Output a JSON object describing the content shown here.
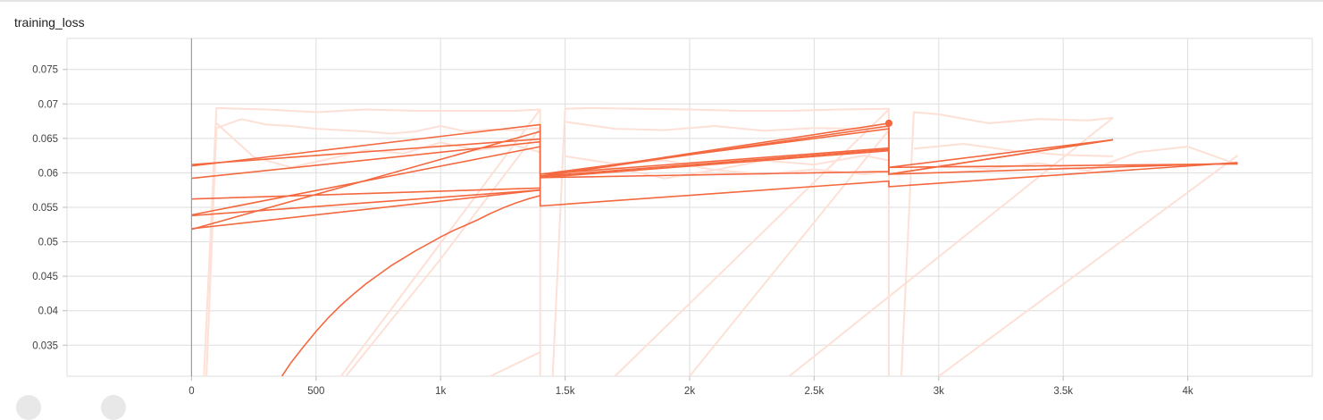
{
  "card": {
    "title": "training_loss"
  },
  "colors": {
    "smoothed": "#f4683f",
    "raw": "#fde0d6",
    "grid": "#dedede",
    "axis_zero": "#9e9e9e"
  },
  "chart_data": {
    "type": "line",
    "title": "training_loss",
    "xlabel": "",
    "ylabel": "",
    "xlim": [
      -500,
      4500
    ],
    "ylim": [
      0.0305,
      0.0795
    ],
    "x_ticks": [
      0,
      500,
      1000,
      1500,
      2000,
      2500,
      3000,
      3500,
      4000
    ],
    "x_tick_labels": [
      "0",
      "500",
      "1k",
      "1.5k",
      "2k",
      "2.5k",
      "3k",
      "3.5k",
      "4k"
    ],
    "y_ticks": [
      0.035,
      0.04,
      0.045,
      0.05,
      0.055,
      0.06,
      0.065,
      0.07,
      0.075
    ],
    "y_tick_labels": [
      "0.035",
      "0.04",
      "0.045",
      "0.05",
      "0.055",
      "0.06",
      "0.065",
      "0.07",
      "0.075"
    ],
    "grid": true,
    "series": [
      {
        "role": "smoothed",
        "x": [
          363,
          400,
          450,
          500,
          550,
          600,
          650,
          700,
          750,
          800,
          850,
          900,
          950,
          1000,
          1050,
          1100,
          1150,
          1200,
          1250,
          1300,
          1350,
          1400
        ],
        "y": [
          0.0305,
          0.0325,
          0.0348,
          0.037,
          0.039,
          0.0408,
          0.0424,
          0.0439,
          0.0452,
          0.0465,
          0.0476,
          0.0487,
          0.0497,
          0.0507,
          0.0516,
          0.0524,
          0.0532,
          0.0541,
          0.0549,
          0.0556,
          0.0562,
          0.0567
        ]
      },
      {
        "role": "smoothed",
        "x": [
          0,
          1400,
          1400,
          2800,
          2800,
          3700
        ],
        "y": [
          0.061,
          0.067,
          0.0595,
          0.0668,
          0.0608,
          0.0648
        ]
      },
      {
        "role": "smoothed",
        "x": [
          0,
          1400,
          1400,
          2800,
          2800,
          4200
        ],
        "y": [
          0.0612,
          0.0649,
          0.0598,
          0.0664,
          0.0598,
          0.0614
        ]
      },
      {
        "role": "smoothed",
        "x": [
          0,
          1400,
          1400,
          2800,
          2800,
          3700
        ],
        "y": [
          0.0592,
          0.0645,
          0.0593,
          0.0632,
          0.0598,
          0.0648
        ]
      },
      {
        "role": "smoothed",
        "x": [
          0,
          1400,
          1400,
          2800,
          2800,
          4200
        ],
        "y": [
          0.0562,
          0.0578,
          0.0552,
          0.0588,
          0.058,
          0.0615
        ]
      },
      {
        "role": "smoothed",
        "x": [
          0,
          1400,
          1400,
          2800,
          2800,
          3700
        ],
        "y": [
          0.0539,
          0.0638,
          0.0595,
          0.0634,
          0.0598,
          0.0648
        ]
      },
      {
        "role": "smoothed",
        "x": [
          0,
          1400,
          1400,
          2800
        ],
        "y": [
          0.0519,
          0.0575,
          0.0595,
          0.0672
        ]
      },
      {
        "role": "smoothed",
        "x": [
          0,
          1400,
          1400,
          2800,
          2800,
          4200
        ],
        "y": [
          0.0538,
          0.0575,
          0.0593,
          0.0602,
          0.0608,
          0.0613
        ]
      },
      {
        "role": "smoothed",
        "x": [
          0,
          1400,
          1400,
          2800
        ],
        "y": [
          0.0518,
          0.066,
          0.0598,
          0.0636
        ]
      },
      {
        "role": "raw",
        "x": [
          50,
          100,
          200,
          300,
          400,
          500,
          700,
          900,
          1100,
          1300,
          1400,
          1400
        ],
        "y": [
          0.0305,
          0.0694,
          0.0693,
          0.0692,
          0.069,
          0.0688,
          0.0692,
          0.069,
          0.069,
          0.069,
          0.0692,
          0.0305
        ]
      },
      {
        "role": "raw",
        "x": [
          60,
          100,
          200,
          300,
          400,
          500,
          600,
          700,
          800,
          900,
          1000,
          1100,
          1200,
          1300,
          1400
        ],
        "y": [
          0.0305,
          0.0665,
          0.0678,
          0.067,
          0.0668,
          0.0664,
          0.0662,
          0.066,
          0.0657,
          0.066,
          0.0668,
          0.066,
          0.0663,
          0.0662,
          0.0665
        ]
      },
      {
        "role": "raw",
        "x": [
          100,
          250,
          400,
          550,
          700,
          850,
          1000,
          1150,
          1300,
          1400
        ],
        "y": [
          0.0672,
          0.0623,
          0.0608,
          0.062,
          0.0633,
          0.0628,
          0.0644,
          0.0633,
          0.064,
          0.063
        ]
      },
      {
        "role": "raw",
        "x": [
          600,
          1000,
          1400
        ],
        "y": [
          0.0305,
          0.0498,
          0.0692
        ]
      },
      {
        "role": "raw",
        "x": [
          620,
          1000,
          1400
        ],
        "y": [
          0.0305,
          0.0475,
          0.0665
        ]
      },
      {
        "role": "raw",
        "x": [
          1200,
          1400
        ],
        "y": [
          0.0305,
          0.034
        ]
      },
      {
        "role": "raw",
        "x": [
          1450,
          1500,
          1600,
          1800,
          2000,
          2200,
          2400,
          2600,
          2800,
          2800
        ],
        "y": [
          0.0305,
          0.0693,
          0.0694,
          0.0693,
          0.0692,
          0.069,
          0.069,
          0.0692,
          0.0693,
          0.0305
        ]
      },
      {
        "role": "raw",
        "x": [
          1500,
          1700,
          1900,
          2100,
          2300,
          2500,
          2700,
          2800
        ],
        "y": [
          0.0674,
          0.0664,
          0.0662,
          0.0668,
          0.0661,
          0.0665,
          0.0664,
          0.0668
        ]
      },
      {
        "role": "raw",
        "x": [
          1500,
          1700,
          1900,
          2100,
          2300,
          2500,
          2700,
          2800
        ],
        "y": [
          0.0624,
          0.0613,
          0.0618,
          0.0604,
          0.0618,
          0.0612,
          0.0625,
          0.0618
        ]
      },
      {
        "role": "raw",
        "x": [
          1500,
          1700,
          1900,
          2100,
          2300,
          2500,
          2700,
          2800
        ],
        "y": [
          0.0598,
          0.0608,
          0.0592,
          0.0604,
          0.0598,
          0.0605,
          0.0598,
          0.0602
        ]
      },
      {
        "role": "raw",
        "x": [
          1700,
          2800
        ],
        "y": [
          0.0305,
          0.0692
        ]
      },
      {
        "role": "raw",
        "x": [
          2000,
          2800
        ],
        "y": [
          0.0305,
          0.0662
        ]
      },
      {
        "role": "raw",
        "x": [
          2850,
          2900,
          3000,
          3200,
          3400,
          3600,
          3700
        ],
        "y": [
          0.0305,
          0.0688,
          0.0685,
          0.0672,
          0.0678,
          0.0676,
          0.068
        ]
      },
      {
        "role": "raw",
        "x": [
          2900,
          3100,
          3300,
          3500,
          3700
        ],
        "y": [
          0.0635,
          0.0642,
          0.0632,
          0.0626,
          0.0624
        ]
      },
      {
        "role": "raw",
        "x": [
          3000,
          3200,
          3400,
          3600,
          3800,
          4000,
          4200
        ],
        "y": [
          0.0612,
          0.0606,
          0.0614,
          0.0603,
          0.063,
          0.0638,
          0.0612
        ]
      },
      {
        "role": "raw",
        "x": [
          2400,
          3700
        ],
        "y": [
          0.0305,
          0.068
        ]
      },
      {
        "role": "raw",
        "x": [
          3000,
          4200
        ],
        "y": [
          0.0305,
          0.0625
        ]
      }
    ],
    "end_marker": {
      "x": 2800,
      "y": 0.0672
    }
  }
}
